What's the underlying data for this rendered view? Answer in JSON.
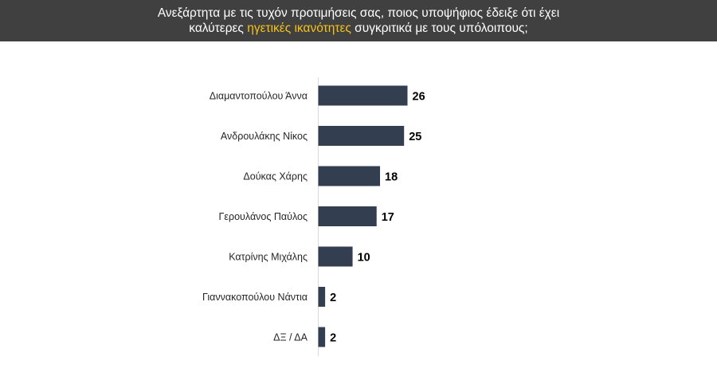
{
  "header": {
    "line1": "Ανεξάρτητα με τις τυχόν προτιμήσεις σας, ποιος υποψήφιος έδειξε ότι έχει",
    "line2_prefix": "καλύτερες ",
    "line2_highlight": "ηγετικές ικανότητες",
    "line2_suffix": " συγκριτικά με τους υπόλοιπους;",
    "background_color": "#404040",
    "highlight_color": "#f5c21b"
  },
  "chart_data": {
    "type": "bar",
    "orientation": "horizontal",
    "categories": [
      "Διαμαντοπούλου Άννα",
      "Ανδρουλάκης Νίκος",
      "Δούκας Χάρης",
      "Γερουλάνος Παύλος",
      "Κατρίνης Μιχάλης",
      "Γιαννακοπούλου Νάντια",
      "ΔΞ / ΔΑ"
    ],
    "values": [
      26,
      25,
      18,
      17,
      10,
      2,
      2
    ],
    "data_labels": [
      "26",
      "25",
      "18",
      "17",
      "10",
      "2",
      "2"
    ],
    "bar_color": "#333f50",
    "xlim": [
      0,
      26
    ],
    "grid": false,
    "legend": "none"
  }
}
